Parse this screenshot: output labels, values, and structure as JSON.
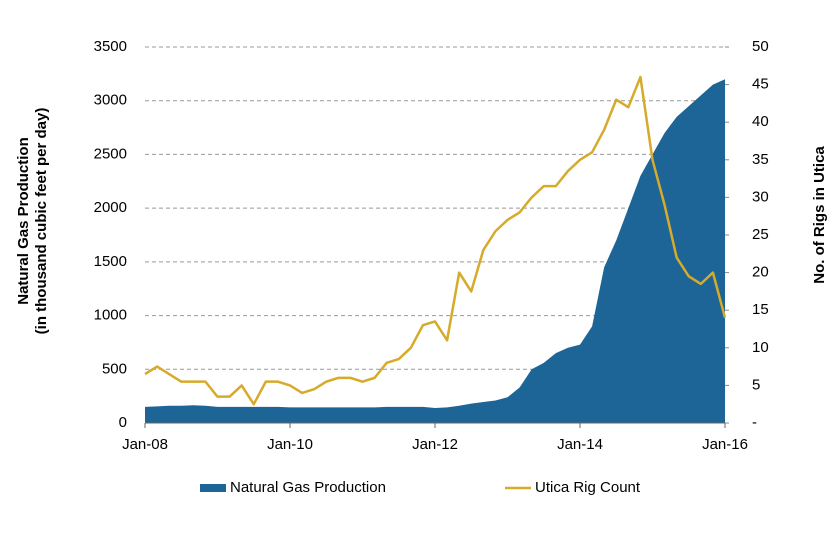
{
  "chart_data": {
    "type": "area-line",
    "ylabel": [
      "Natural Gas Production",
      "(in thousand cubic feet per day)"
    ],
    "y2label": "No. of Rigs in Utica",
    "x": [
      "2008-01",
      "2008-03",
      "2008-05",
      "2008-07",
      "2008-09",
      "2008-11",
      "2009-01",
      "2009-03",
      "2009-05",
      "2009-07",
      "2009-09",
      "2009-11",
      "2010-01",
      "2010-03",
      "2010-05",
      "2010-07",
      "2010-09",
      "2010-11",
      "2011-01",
      "2011-03",
      "2011-05",
      "2011-07",
      "2011-09",
      "2011-11",
      "2012-01",
      "2012-03",
      "2012-05",
      "2012-07",
      "2012-09",
      "2012-11",
      "2013-01",
      "2013-03",
      "2013-05",
      "2013-07",
      "2013-09",
      "2013-11",
      "2014-01",
      "2014-03",
      "2014-05",
      "2014-07",
      "2014-09",
      "2014-11",
      "2015-01",
      "2015-03",
      "2015-05",
      "2015-07",
      "2015-09",
      "2015-11",
      "2016-01"
    ],
    "xlim": [
      "2008-01",
      "2016-01"
    ],
    "xticks": [
      {
        "value": "2008-01",
        "label": "Jan-08"
      },
      {
        "value": "2010-01",
        "label": "Jan-10"
      },
      {
        "value": "2012-01",
        "label": "Jan-12"
      },
      {
        "value": "2014-01",
        "label": "Jan-14"
      },
      {
        "value": "2016-01",
        "label": "Jan-16"
      }
    ],
    "ylim": [
      0,
      3500
    ],
    "yticks": [
      0,
      500,
      1000,
      1500,
      2000,
      2500,
      3000,
      3500
    ],
    "y2lim": [
      0,
      50
    ],
    "y2ticks": [
      {
        "value": 0,
        "label": "-"
      },
      5,
      10,
      15,
      20,
      25,
      30,
      35,
      40,
      45,
      50
    ],
    "grid": true,
    "legend": "bottom",
    "series": [
      {
        "name": "Natural Gas Production",
        "kind": "area",
        "color": "#1d6597",
        "values": [
          150,
          155,
          160,
          160,
          165,
          160,
          150,
          150,
          150,
          150,
          150,
          150,
          145,
          145,
          145,
          145,
          145,
          145,
          145,
          145,
          150,
          150,
          150,
          150,
          140,
          145,
          160,
          180,
          195,
          210,
          240,
          330,
          500,
          560,
          650,
          700,
          730,
          900,
          1450,
          1700,
          2000,
          2300,
          2500,
          2700,
          2850,
          2950,
          3050,
          3150,
          3200
        ]
      },
      {
        "name": "Utica Rig Count",
        "kind": "line",
        "axis": "y2",
        "color": "#d6aa2a",
        "values": [
          6.5,
          7.5,
          6.5,
          5.5,
          5.5,
          5.5,
          3.5,
          3.5,
          5,
          2.5,
          5.5,
          5.5,
          5,
          4,
          4.5,
          5.5,
          6,
          6,
          5.5,
          6,
          8,
          8.5,
          10,
          13,
          13.5,
          11,
          20,
          17.5,
          23,
          25.5,
          27,
          28,
          30,
          31.5,
          31.5,
          33.5,
          35,
          36,
          39,
          43,
          42,
          46,
          35,
          29,
          22,
          19.5,
          18.5,
          20,
          14
        ]
      }
    ]
  }
}
